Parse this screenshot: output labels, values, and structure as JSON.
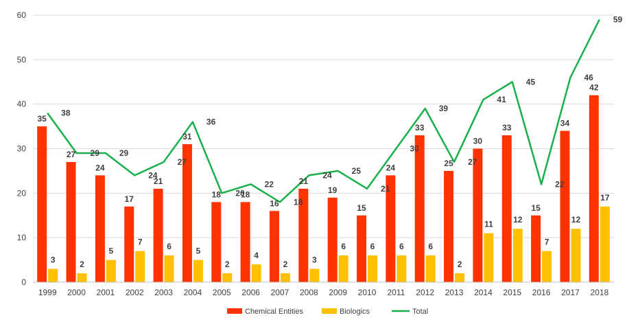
{
  "chart_data": {
    "type": "bar",
    "categories": [
      "1999",
      "2000",
      "2001",
      "2002",
      "2003",
      "2004",
      "2005",
      "2006",
      "2007",
      "2008",
      "2009",
      "2010",
      "2011",
      "2012",
      "2013",
      "2014",
      "2015",
      "2016",
      "2017",
      "2018"
    ],
    "series": [
      {
        "name": "Chemical Entities",
        "type": "bar",
        "color": "#ff3300",
        "values": [
          35,
          27,
          24,
          17,
          21,
          31,
          18,
          18,
          16,
          21,
          19,
          15,
          24,
          33,
          25,
          30,
          33,
          15,
          34,
          42
        ]
      },
      {
        "name": "Biologics",
        "type": "bar",
        "color": "#ffc000",
        "values": [
          3,
          2,
          5,
          7,
          6,
          5,
          2,
          4,
          2,
          3,
          6,
          6,
          6,
          6,
          2,
          11,
          12,
          7,
          12,
          17
        ]
      },
      {
        "name": "Total",
        "type": "line",
        "color": "#18b04a",
        "values": [
          38,
          29,
          29,
          24,
          27,
          36,
          20,
          22,
          18,
          24,
          25,
          21,
          30,
          39,
          27,
          41,
          45,
          22,
          46,
          59
        ]
      }
    ],
    "yticks": [
      "0",
      "10",
      "20",
      "30",
      "40",
      "50",
      "60"
    ],
    "ylim": [
      0,
      60
    ],
    "grid": true,
    "legend_position": "bottom",
    "title": "",
    "xlabel": "",
    "ylabel": ""
  }
}
